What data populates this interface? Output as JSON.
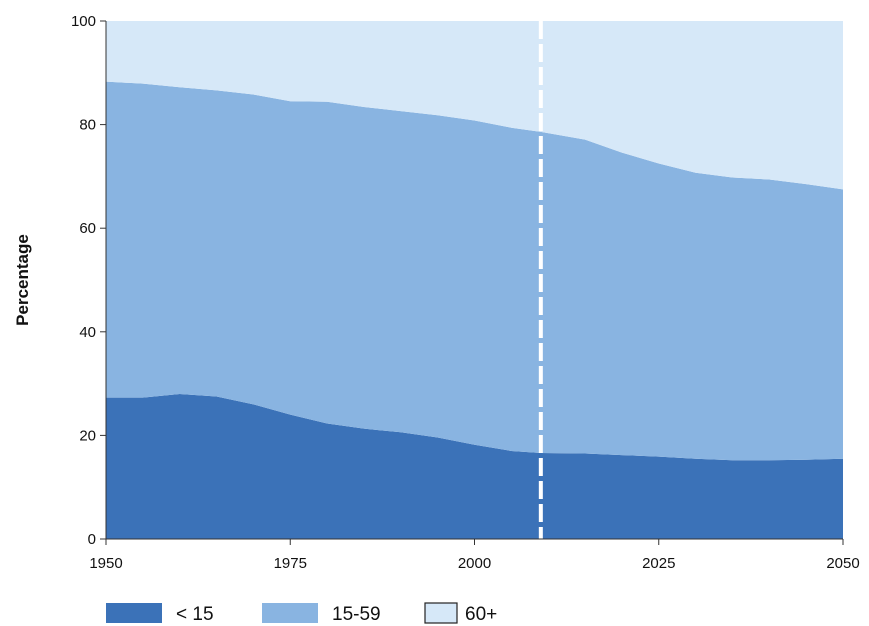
{
  "chart_data": {
    "type": "area",
    "stacked": true,
    "ylabel": "Percentage",
    "xlabel": "",
    "xlim": [
      1950,
      2050
    ],
    "ylim": [
      0,
      100
    ],
    "xticks": [
      "1950",
      "1975",
      "2000",
      "2025",
      "2050"
    ],
    "yticks": [
      "0",
      "20",
      "40",
      "60",
      "80",
      "100"
    ],
    "grid": false,
    "legend_position": "bottom",
    "projection_divider_x": 2009,
    "divider_style": "white dashed line",
    "x": [
      1950,
      1955,
      1960,
      1965,
      1970,
      1975,
      1980,
      1985,
      1990,
      1995,
      2000,
      2005,
      2009,
      2015,
      2020,
      2025,
      2030,
      2035,
      2040,
      2045,
      2050
    ],
    "series": [
      {
        "name": "< 15",
        "color": "#3b72b8",
        "values": [
          27.3,
          27.3,
          28.0,
          27.5,
          26.0,
          24.0,
          22.3,
          21.3,
          20.6,
          19.6,
          18.2,
          17.0,
          16.6,
          16.5,
          16.2,
          15.9,
          15.5,
          15.2,
          15.2,
          15.3,
          15.5
        ]
      },
      {
        "name": "15-59",
        "color": "#89b4e1",
        "values": [
          61.0,
          60.6,
          59.2,
          59.1,
          59.8,
          60.5,
          62.1,
          62.1,
          62.0,
          62.2,
          62.6,
          62.4,
          62.0,
          60.6,
          58.4,
          56.6,
          55.2,
          54.6,
          54.2,
          53.2,
          52.0
        ]
      },
      {
        "name": "60+",
        "color": "#d6e8f8",
        "values": [
          11.7,
          12.1,
          12.8,
          13.4,
          14.2,
          15.5,
          15.6,
          16.6,
          17.4,
          18.2,
          19.2,
          20.6,
          21.4,
          22.9,
          25.4,
          27.5,
          29.3,
          30.2,
          30.6,
          31.5,
          32.5
        ]
      }
    ]
  }
}
